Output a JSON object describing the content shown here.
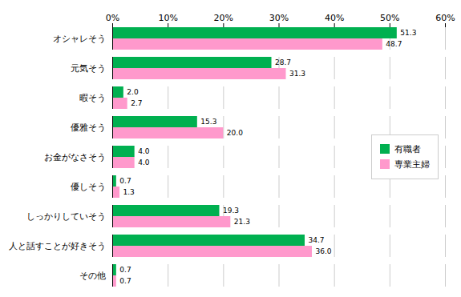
{
  "chart_data": {
    "type": "bar",
    "orientation": "horizontal",
    "categories": [
      "オシャレそう",
      "元気そう",
      "暇そう",
      "優雅そう",
      "お金がなさそう",
      "優しそう",
      "しっかりしていそう",
      "人と話すことが好きそう",
      "その他"
    ],
    "series": [
      {
        "name": "有職者",
        "color": "#00B050",
        "values": [
          51.3,
          28.7,
          2.0,
          15.3,
          4.0,
          0.7,
          19.3,
          34.7,
          0.7
        ],
        "value_labels": [
          "51.3",
          "28.7",
          "2.0",
          "15.3",
          "4.0",
          "0.7",
          "19.3",
          "34.7",
          "0.7"
        ]
      },
      {
        "name": "専業主婦",
        "color": "#FF99CC",
        "values": [
          48.7,
          31.3,
          2.7,
          20.0,
          4.0,
          1.3,
          21.3,
          36.0,
          0.7
        ],
        "value_labels": [
          "48.7",
          "31.3",
          "2.7",
          "20.0",
          "4.0",
          "1.3",
          "21.3",
          "36.0",
          "0.7"
        ]
      }
    ],
    "xlim": [
      0,
      60
    ],
    "xticks": [
      {
        "value": 0,
        "label": "0%"
      },
      {
        "value": 10,
        "label": "10%"
      },
      {
        "value": 20,
        "label": "20%"
      },
      {
        "value": 30,
        "label": "30%"
      },
      {
        "value": 40,
        "label": "40%"
      },
      {
        "value": 50,
        "label": "50%"
      },
      {
        "value": 60,
        "label": "60%"
      }
    ],
    "grid": true,
    "legend": "right",
    "data_labels": true
  }
}
